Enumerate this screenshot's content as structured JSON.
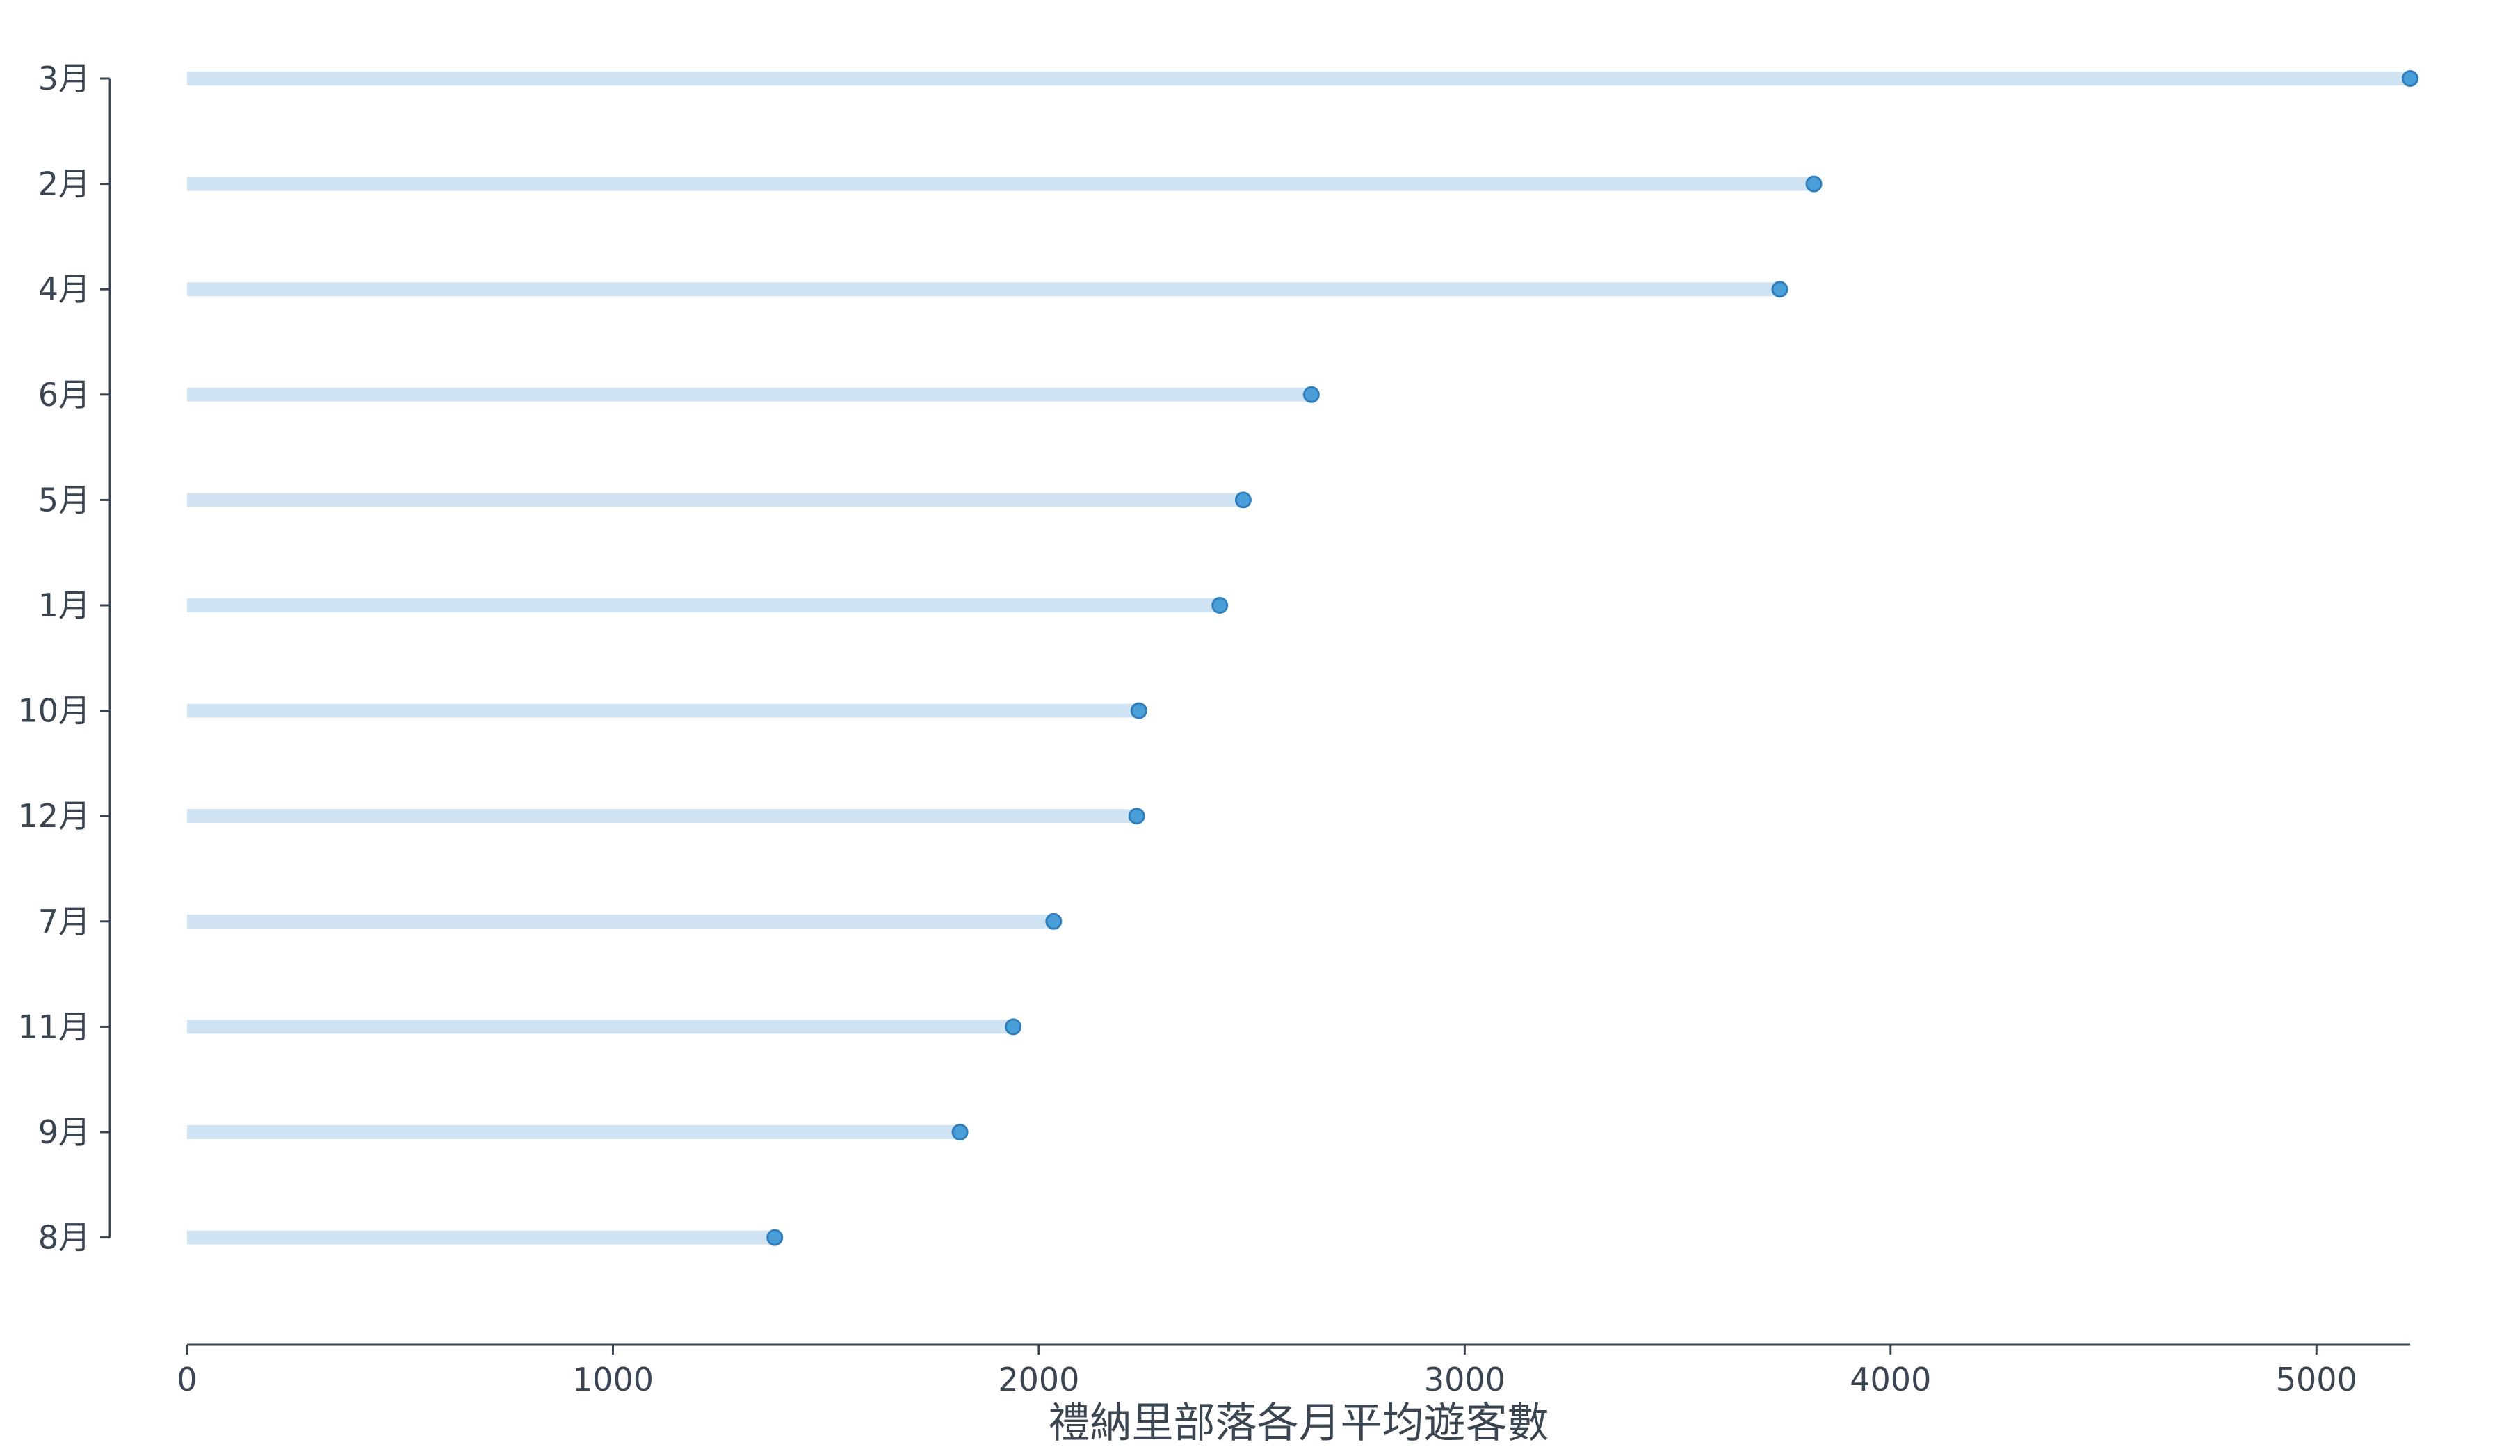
{
  "chart_data": {
    "type": "lollipop",
    "orientation": "horizontal",
    "title": "",
    "xlabel": "禮納里部落各月平均遊客數",
    "ylabel": "",
    "categories": [
      "3月",
      "2月",
      "4月",
      "6月",
      "5月",
      "1月",
      "10月",
      "12月",
      "7月",
      "11月",
      "9月",
      "8月"
    ],
    "values": [
      5220,
      3820,
      3740,
      2640,
      2480,
      2425,
      2235,
      2230,
      2035,
      1940,
      1815,
      1380
    ],
    "xlim": [
      0,
      5220
    ],
    "xticks": [
      0,
      1000,
      2000,
      3000,
      4000,
      5000
    ],
    "grid": false,
    "colors": {
      "stem": "#cfe3f3",
      "marker": "#4a9fd8",
      "marker_edge": "#2f7fbf",
      "axis": "#3b4552"
    }
  }
}
